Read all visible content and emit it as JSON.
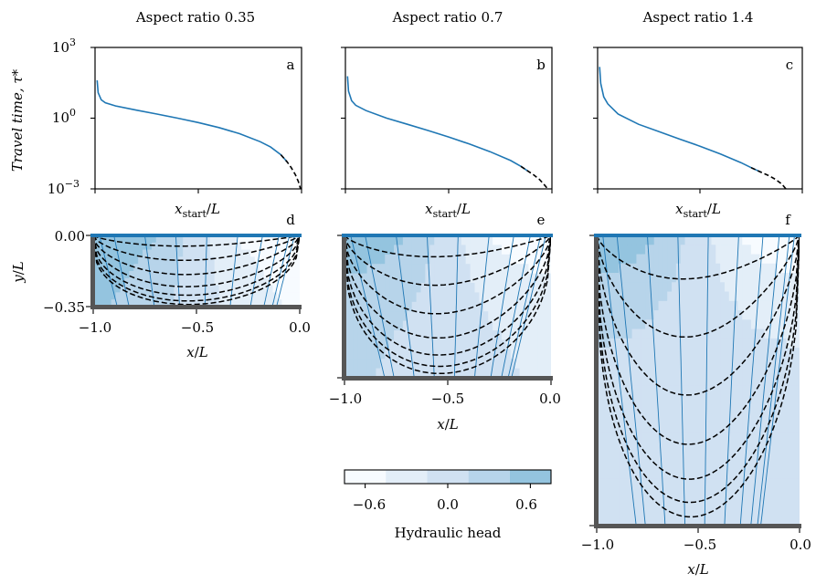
{
  "figure": {
    "colorbar": {
      "label": "Hydraulic head",
      "ticks": [
        {
          "value": -0.6,
          "label": "−0.6"
        },
        {
          "value": 0.0,
          "label": "0.0"
        },
        {
          "value": 0.6,
          "label": "0.6"
        }
      ],
      "range": [
        -0.75,
        0.75
      ],
      "levels": [
        -0.75,
        -0.45,
        -0.15,
        0.15,
        0.45,
        0.75
      ],
      "colors": [
        "#f7fbff",
        "#e3eef8",
        "#d0e1f2",
        "#b7d4ea",
        "#94c4df"
      ]
    },
    "colors": {
      "curve": "#1f77b4",
      "streamline": "#1f77b4",
      "dashed": "#000000",
      "wall": "#555555",
      "surface": "#1f77b4"
    }
  },
  "chart_data": [
    {
      "type": "line",
      "panel": "a",
      "title": "Aspect ratio 0.35",
      "xlabel": "x_start/L",
      "ylabel": "Travel time, τ*",
      "yscale": "log",
      "ylim": [
        0.001,
        1000
      ],
      "xlim": [
        -1.0,
        0.0
      ],
      "yticks": [
        {
          "value": 1000,
          "base": "10",
          "exp": "3"
        },
        {
          "value": 1,
          "base": "10",
          "exp": "0"
        },
        {
          "value": 0.001,
          "base": "10",
          "exp": "−3"
        }
      ],
      "series": [
        {
          "style": "solid",
          "x": [
            -0.99,
            -0.985,
            -0.97,
            -0.95,
            -0.9,
            -0.8,
            -0.7,
            -0.6,
            -0.5,
            -0.4,
            -0.3,
            -0.2,
            -0.15,
            -0.1,
            -0.07
          ],
          "y": [
            40,
            12,
            6,
            4.5,
            3.3,
            2.2,
            1.5,
            1.0,
            0.65,
            0.4,
            0.22,
            0.1,
            0.06,
            0.028,
            0.014
          ]
        },
        {
          "style": "dashed",
          "x": [
            -0.1,
            -0.07,
            -0.05,
            -0.03,
            -0.015,
            -0.005
          ],
          "y": [
            0.028,
            0.014,
            0.008,
            0.004,
            0.002,
            0.001
          ]
        }
      ]
    },
    {
      "type": "line",
      "panel": "b",
      "title": "Aspect ratio 0.7",
      "xlabel": "x_start/L",
      "yscale": "log",
      "ylim": [
        0.001,
        1000
      ],
      "xlim": [
        -1.0,
        0.0
      ],
      "series": [
        {
          "style": "solid",
          "x": [
            -0.99,
            -0.985,
            -0.97,
            -0.95,
            -0.9,
            -0.8,
            -0.7,
            -0.6,
            -0.5,
            -0.4,
            -0.3,
            -0.2,
            -0.15,
            -0.12
          ],
          "y": [
            60,
            14,
            5.5,
            3.5,
            2.1,
            1.0,
            0.55,
            0.3,
            0.16,
            0.08,
            0.038,
            0.016,
            0.009,
            0.006
          ]
        },
        {
          "style": "dashed",
          "x": [
            -0.15,
            -0.12,
            -0.09,
            -0.06,
            -0.04,
            -0.02
          ],
          "y": [
            0.009,
            0.006,
            0.004,
            0.0025,
            0.0016,
            0.001
          ]
        }
      ]
    },
    {
      "type": "line",
      "panel": "c",
      "title": "Aspect ratio 1.4",
      "xlabel": "x_start/L",
      "yscale": "log",
      "ylim": [
        0.001,
        1000
      ],
      "xlim": [
        -1.0,
        0.0
      ],
      "series": [
        {
          "style": "solid",
          "x": [
            -0.99,
            -0.985,
            -0.97,
            -0.95,
            -0.9,
            -0.8,
            -0.7,
            -0.6,
            -0.5,
            -0.4,
            -0.3,
            -0.25,
            -0.2
          ],
          "y": [
            150,
            30,
            8.0,
            4.0,
            1.5,
            0.55,
            0.27,
            0.13,
            0.065,
            0.03,
            0.013,
            0.008,
            0.005
          ]
        },
        {
          "style": "dashed",
          "x": [
            -0.25,
            -0.2,
            -0.16,
            -0.13,
            -0.1,
            -0.08
          ],
          "y": [
            0.008,
            0.005,
            0.0035,
            0.0025,
            0.0016,
            0.001
          ]
        }
      ]
    },
    {
      "type": "heatmap",
      "panel": "d",
      "aspect": 0.35,
      "xlabel": "x/L",
      "ylabel": "y/L",
      "xlim": [
        -1.0,
        0.0
      ],
      "ylim": [
        -0.35,
        0.0
      ],
      "yticks": [
        {
          "value": 0.0,
          "label": "0.00"
        },
        {
          "value": -0.35,
          "label": "−0.35"
        }
      ],
      "xticks": [
        {
          "value": -1.0,
          "label": "−1.0"
        },
        {
          "value": -0.5,
          "label": "−0.5"
        },
        {
          "value": 0.0,
          "label": "0.0"
        }
      ],
      "field": "hydraulic head, high near x=-1 surface, low near x=0 surface",
      "contours": "dashed pathlines, solid equipotential lines"
    },
    {
      "type": "heatmap",
      "panel": "e",
      "aspect": 0.7,
      "xlabel": "x/L",
      "xlim": [
        -1.0,
        0.0
      ],
      "ylim": [
        -0.7,
        0.0
      ],
      "xticks": [
        {
          "value": -1.0,
          "label": "−1.0"
        },
        {
          "value": -0.5,
          "label": "−0.5"
        },
        {
          "value": 0.0,
          "label": "0.0"
        }
      ],
      "field": "hydraulic head, high near x=-1 surface, low near x=0 surface",
      "contours": "dashed pathlines, solid equipotential lines"
    },
    {
      "type": "heatmap",
      "panel": "f",
      "aspect": 1.4,
      "xlabel": "x/L",
      "xlim": [
        -1.0,
        0.0
      ],
      "ylim": [
        -1.4,
        0.0
      ],
      "xticks": [
        {
          "value": -1.0,
          "label": "−1.0"
        },
        {
          "value": -0.5,
          "label": "−0.5"
        },
        {
          "value": 0.0,
          "label": "0.0"
        }
      ],
      "field": "hydraulic head, high near x=-1 surface, low near x=0 surface",
      "contours": "dashed pathlines, solid equipotential lines"
    }
  ]
}
